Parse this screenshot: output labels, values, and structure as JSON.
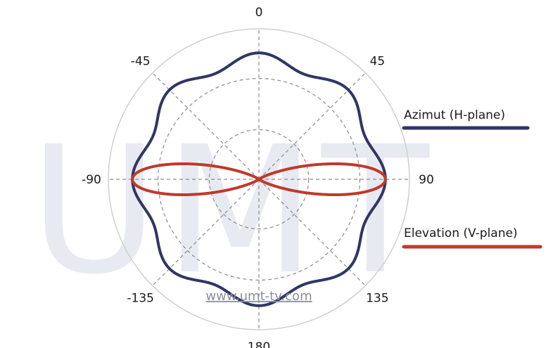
{
  "colors": {
    "azimuth": "#2f3666",
    "elevation": "#c0392b",
    "grid": "#8c8c8c",
    "outer_ring": "#cfcfcf",
    "watermark": "#e8eaf1"
  },
  "watermark_text": "UMT",
  "footer_link": "www.umt-tv.com",
  "chart_data": {
    "type": "polar",
    "angle_unit": "degrees",
    "zero_direction": "top",
    "angle_direction": "clockwise",
    "angular_ticks": [
      {
        "angle": 0,
        "label": "0"
      },
      {
        "angle": 45,
        "label": "45"
      },
      {
        "angle": 90,
        "label": "90"
      },
      {
        "angle": 135,
        "label": "135"
      },
      {
        "angle": 180,
        "label": "180"
      },
      {
        "angle": -135,
        "label": "-135"
      },
      {
        "angle": -90,
        "label": "-90"
      },
      {
        "angle": -45,
        "label": "-45"
      }
    ],
    "radial_ring_fractions": [
      0.33,
      0.67,
      1.0
    ],
    "radial_range": [
      0,
      1
    ],
    "grid": true,
    "legend_placement": "right",
    "series": [
      {
        "name": "Azimut (H-plane)",
        "pattern": "8 lobes, normalized gain 0.84 at lobe peaks (0, 45, 90 ... deg), 0.76 at minima between lobes",
        "base": 0.8,
        "ripple_amplitude": 0.04,
        "ripple_lobes": 8
      },
      {
        "name": "Elevation (V-plane)",
        "pattern": "figure-eight, normalized gain 0.84 at 90 and -90 deg, 0 at 0 and 180 deg",
        "peak": 0.84,
        "peak_angles": [
          90,
          -90
        ],
        "null_angles": [
          0,
          180
        ],
        "lobe_sharpness": 24
      }
    ]
  }
}
